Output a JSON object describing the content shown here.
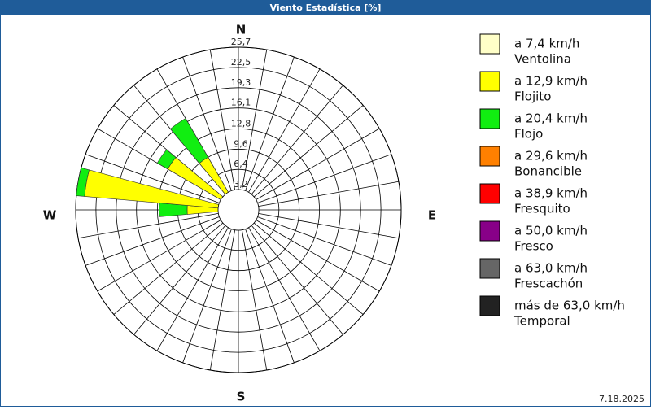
{
  "chart_data": {
    "type": "windrose",
    "title": "Viento Estadística [%]",
    "date": "7.18.2025",
    "compass": [
      "N",
      "E",
      "S",
      "W"
    ],
    "directions": [
      270,
      280,
      305,
      325
    ],
    "rlim": [
      0,
      25.7
    ],
    "rticks": [
      {
        "value": 3.2,
        "label": "3,2"
      },
      {
        "value": 6.4,
        "label": "6,4"
      },
      {
        "value": 9.6,
        "label": "9,6"
      },
      {
        "value": 12.8,
        "label": "12,8"
      },
      {
        "value": 16.1,
        "label": "16,1"
      },
      {
        "value": 19.3,
        "label": "19,3"
      },
      {
        "value": 22.5,
        "label": "22,5"
      },
      {
        "value": 25.7,
        "label": "25,7"
      }
    ],
    "series": [
      {
        "name": "a 7,4 km/h",
        "description": "Ventolina",
        "color": "#ffffc8",
        "values": [
          0,
          0,
          0,
          0
        ]
      },
      {
        "name": "a 12,9 km/h",
        "description": "Flojito",
        "color": "#ffff00",
        "values": [
          8.1,
          24.4,
          12.9,
          9.6
        ]
      },
      {
        "name": "a 20,4 km/h",
        "description": "Flojo",
        "color": "#11ee11",
        "values": [
          4.4,
          1.3,
          1.9,
          7.1
        ]
      },
      {
        "name": "a 29,6 km/h",
        "description": "Bonancible",
        "color": "#ff8000",
        "values": [
          0,
          0,
          0,
          0
        ]
      },
      {
        "name": "a 38,9 km/h",
        "description": "Fresquito",
        "color": "#ff0000",
        "values": [
          0,
          0,
          0,
          0
        ]
      },
      {
        "name": "a 50,0 km/h",
        "description": "Fresco",
        "color": "#880088",
        "values": [
          0,
          0,
          0,
          0
        ]
      },
      {
        "name": "a 63,0 km/h",
        "description": "Frescachón",
        "color": "#666666",
        "values": [
          0,
          0,
          0,
          0
        ]
      },
      {
        "name": "más de 63,0 km/h",
        "description": "Temporal",
        "color": "#222222",
        "values": [
          0,
          0,
          0,
          0
        ]
      }
    ]
  }
}
